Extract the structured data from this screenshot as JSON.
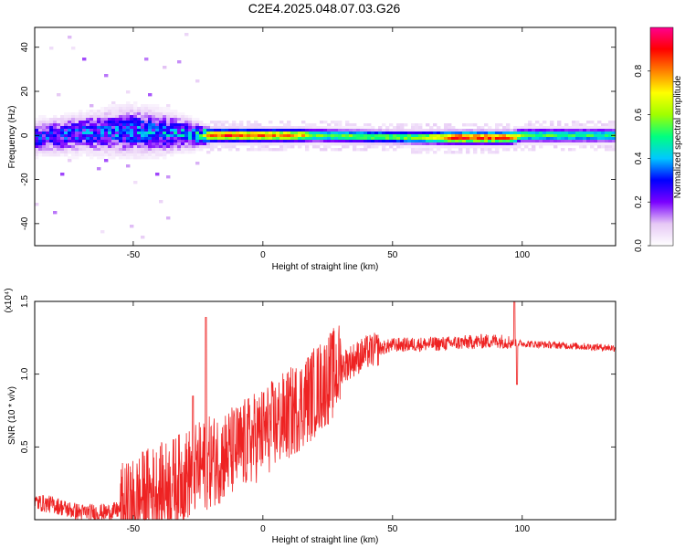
{
  "title": "C2E4.2025.048.07.03.G26",
  "chart_data": [
    {
      "type": "heatmap",
      "xlabel": "Height of straight line (km)",
      "ylabel": "Frequency (Hz)",
      "xlim": [
        -88,
        136
      ],
      "ylim": [
        -50,
        49
      ],
      "xticks": [
        -50,
        0,
        50,
        100
      ],
      "yticks": [
        -40,
        -20,
        0,
        20,
        40
      ],
      "colorbar": {
        "label": "Normalized spectral amplitude",
        "range": [
          0,
          1
        ],
        "ticks": [
          "0.0",
          "0.2",
          "0.4",
          "0.6",
          "0.8"
        ],
        "tick_values": [
          0,
          0.2,
          0.4,
          0.6,
          0.8
        ],
        "colormap": [
          "#ffffff",
          "#e6c8f5",
          "#7a00ff",
          "#0000ff",
          "#00c8ff",
          "#00ff80",
          "#a0ff00",
          "#ffff00",
          "#ff8000",
          "#ff0000",
          "#ff0090"
        ]
      },
      "band_profile": [
        {
          "x": -88,
          "center": -1,
          "halfwidth": 7,
          "peak": 0.28
        },
        {
          "x": -70,
          "center": 1,
          "halfwidth": 8,
          "peak": 0.3
        },
        {
          "x": -50,
          "center": 2,
          "halfwidth": 10,
          "peak": 0.32
        },
        {
          "x": -35,
          "center": 1,
          "halfwidth": 8,
          "peak": 0.34
        },
        {
          "x": -24,
          "center": 0,
          "halfwidth": 5,
          "peak": 0.4
        },
        {
          "x": -20,
          "center": 0,
          "halfwidth": 3,
          "peak": 0.85
        },
        {
          "x": 0,
          "center": 0,
          "halfwidth": 3,
          "peak": 0.85
        },
        {
          "x": 15,
          "center": 0,
          "halfwidth": 3,
          "peak": 0.75
        },
        {
          "x": 20,
          "center": 0,
          "halfwidth": 3,
          "peak": 0.55
        },
        {
          "x": 60,
          "center": -1,
          "halfwidth": 3,
          "peak": 0.58
        },
        {
          "x": 75,
          "center": -1,
          "halfwidth": 3,
          "peak": 0.88
        },
        {
          "x": 96,
          "center": -1,
          "halfwidth": 3,
          "peak": 0.85
        },
        {
          "x": 100,
          "center": 0,
          "halfwidth": 3,
          "peak": 0.55
        },
        {
          "x": 136,
          "center": 0,
          "halfwidth": 3,
          "peak": 0.5
        }
      ]
    },
    {
      "type": "line",
      "xlabel": "Height of straight line (km)",
      "ylabel": "SNR (10 * v/v)",
      "yscale_note": "(x10⁴)",
      "xlim": [
        -88,
        136
      ],
      "ylim": [
        0,
        1.5
      ],
      "xticks": [
        -50,
        0,
        50,
        100
      ],
      "yticks": [
        0.5,
        1.0,
        1.5
      ],
      "ytick_labels": [
        "0.5",
        "1.0",
        "1.5"
      ],
      "color": "#ee2222",
      "trend": [
        {
          "x": -88,
          "y": 0.12
        },
        {
          "x": -80,
          "y": 0.1
        },
        {
          "x": -75,
          "y": 0.07
        },
        {
          "x": -70,
          "y": 0.05
        },
        {
          "x": -60,
          "y": 0.05
        },
        {
          "x": -52,
          "y": 0.08
        },
        {
          "x": -45,
          "y": 0.18
        },
        {
          "x": -38,
          "y": 0.22
        },
        {
          "x": -30,
          "y": 0.3
        },
        {
          "x": -20,
          "y": 0.4
        },
        {
          "x": -10,
          "y": 0.48
        },
        {
          "x": 0,
          "y": 0.6
        },
        {
          "x": 10,
          "y": 0.72
        },
        {
          "x": 20,
          "y": 0.88
        },
        {
          "x": 30,
          "y": 1.05
        },
        {
          "x": 40,
          "y": 1.15
        },
        {
          "x": 50,
          "y": 1.2
        },
        {
          "x": 70,
          "y": 1.21
        },
        {
          "x": 90,
          "y": 1.23
        },
        {
          "x": 100,
          "y": 1.21
        },
        {
          "x": 136,
          "y": 1.18
        }
      ],
      "spikes": [
        {
          "x": -22,
          "y": 1.39
        },
        {
          "x": -27,
          "y": 0.85
        },
        {
          "x": 97,
          "y": 1.52
        },
        {
          "x": 98,
          "y": 0.93
        }
      ]
    }
  ]
}
